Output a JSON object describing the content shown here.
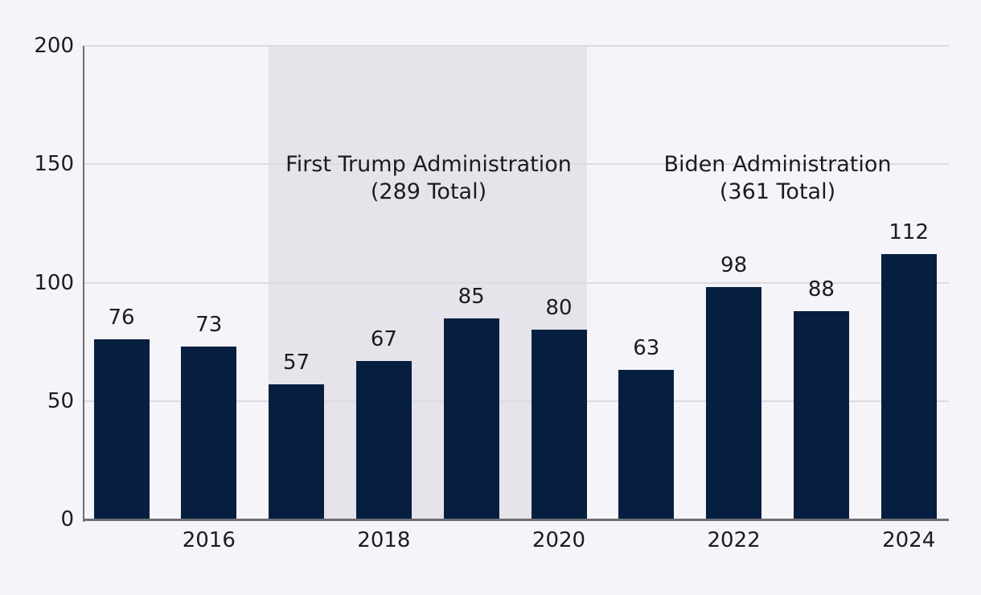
{
  "chart_data": {
    "type": "bar",
    "title": "",
    "xlabel": "",
    "ylabel": "",
    "x": [
      2015,
      2016,
      2017,
      2018,
      2019,
      2020,
      2021,
      2022,
      2023,
      2024
    ],
    "values": [
      76,
      73,
      57,
      67,
      85,
      80,
      63,
      98,
      88,
      112
    ],
    "bar_value_labels": [
      "76",
      "73",
      "57",
      "67",
      "85",
      "80",
      "63",
      "98",
      "88",
      "112"
    ],
    "x_tick_labels": [
      "2016",
      "2018",
      "2020",
      "2022",
      "2024"
    ],
    "y_ticks": [
      0,
      50,
      100,
      150,
      200
    ],
    "y_tick_labels": [
      "0",
      "50",
      "100",
      "150",
      "200"
    ],
    "ylim": [
      0,
      200
    ],
    "grid": true,
    "legend": "none",
    "annotations": [
      {
        "label": "First Trump Administration",
        "sublabel": "(289 Total)",
        "total": 289,
        "x_range": [
          2017,
          2020
        ],
        "shaded": true
      },
      {
        "label": "Biden Administration",
        "sublabel": "(361 Total)",
        "total": 361,
        "x_range": [
          2021,
          2024
        ],
        "shaded": false
      }
    ],
    "colors": {
      "bar": "#061f40",
      "background": "#f5f4f8",
      "shade": "#e6e4ea",
      "gridline": "#dcdbe1",
      "axis": "#6e6e73",
      "text": "#1c1c1e"
    }
  }
}
